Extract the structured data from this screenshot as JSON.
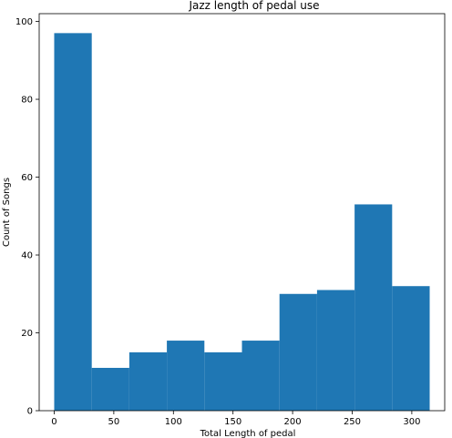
{
  "chart_data": {
    "type": "bar",
    "title": "Jazz length of pedal use",
    "xlabel": "Total Length of pedal",
    "ylabel": "Count of Songs",
    "bin_edges": [
      0,
      31.5,
      63,
      94.5,
      126,
      157.5,
      189,
      220.5,
      252,
      283.5,
      315
    ],
    "values": [
      97,
      11,
      15,
      18,
      15,
      18,
      30,
      31,
      53,
      32
    ],
    "xlim": [
      -12.6,
      327.6
    ],
    "ylim": [
      0,
      102
    ],
    "xticks": [
      0,
      50,
      100,
      150,
      200,
      250,
      300
    ],
    "yticks": [
      0,
      20,
      40,
      60,
      80,
      100
    ],
    "bar_color": "#1f77b4",
    "grid": false
  }
}
